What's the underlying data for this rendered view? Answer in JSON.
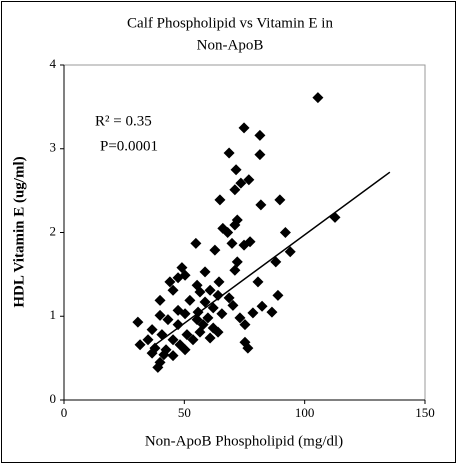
{
  "chart_data": {
    "type": "scatter",
    "title": [
      "Calf Phospholipid vs Vitamin E in",
      "Non-ApoB"
    ],
    "x_label": "Non-ApoB Phospholipid (mg/dl)",
    "y_label": "HDL Vitamin E (ug/ml)",
    "annotations": [
      "R² = 0.35",
      "P=0.0001"
    ],
    "color": "#000000",
    "xlim": [
      0,
      150
    ],
    "xticks": [
      0,
      50,
      100,
      150
    ],
    "ylim": [
      0,
      4
    ],
    "yticks": [
      0,
      1,
      2,
      3,
      4
    ],
    "x": [
      105.5,
      74.8,
      81.4,
      68.6,
      81.4,
      71.5,
      73.5,
      71.0,
      76.8,
      89.7,
      81.8,
      64.8,
      72.0,
      71.0,
      66.0,
      68.0,
      92.0,
      112.6,
      94.0,
      77.3,
      74.8,
      69.8,
      54.8,
      62.7,
      72.0,
      88.0,
      71.0,
      58.6,
      49.0,
      50.3,
      47.4,
      44.0,
      80.6,
      64.4,
      55.3,
      60.7,
      56.5,
      64.0,
      45.3,
      88.9,
      68.6,
      39.9,
      52.3,
      58.6,
      70.2,
      82.3,
      62.0,
      47.4,
      55.7,
      50.3,
      39.9,
      65.6,
      78.5,
      86.4,
      43.2,
      55.3,
      59.8,
      73.1,
      30.7,
      36.6,
      47.4,
      57.8,
      62.0,
      75.2,
      40.7,
      51.1,
      56.5,
      60.7,
      64.0,
      34.9,
      45.3,
      53.6,
      75.2,
      31.6,
      37.8,
      48.2,
      76.4,
      42.4,
      50.3,
      36.6,
      41.5,
      45.3,
      39.9,
      39.0
    ],
    "values": [
      3.61,
      3.25,
      3.16,
      2.95,
      2.93,
      2.75,
      2.59,
      2.51,
      2.63,
      2.39,
      2.33,
      2.39,
      2.15,
      2.09,
      2.05,
      2.0,
      2.0,
      2.18,
      1.77,
      1.89,
      1.85,
      1.87,
      1.87,
      1.79,
      1.65,
      1.65,
      1.55,
      1.53,
      1.58,
      1.49,
      1.46,
      1.41,
      1.41,
      1.41,
      1.37,
      1.31,
      1.29,
      1.25,
      1.31,
      1.25,
      1.22,
      1.19,
      1.19,
      1.17,
      1.13,
      1.12,
      1.1,
      1.07,
      1.05,
      1.03,
      1.01,
      1.03,
      1.04,
      1.05,
      0.96,
      0.96,
      0.98,
      0.98,
      0.93,
      0.84,
      0.9,
      0.9,
      0.86,
      0.9,
      0.78,
      0.78,
      0.81,
      0.74,
      0.81,
      0.72,
      0.72,
      0.72,
      0.69,
      0.66,
      0.62,
      0.66,
      0.62,
      0.6,
      0.6,
      0.56,
      0.54,
      0.53,
      0.45,
      0.39
    ],
    "trendline": {
      "x": [
        36,
        135.4
      ],
      "values": [
        0.62,
        2.72
      ]
    }
  }
}
